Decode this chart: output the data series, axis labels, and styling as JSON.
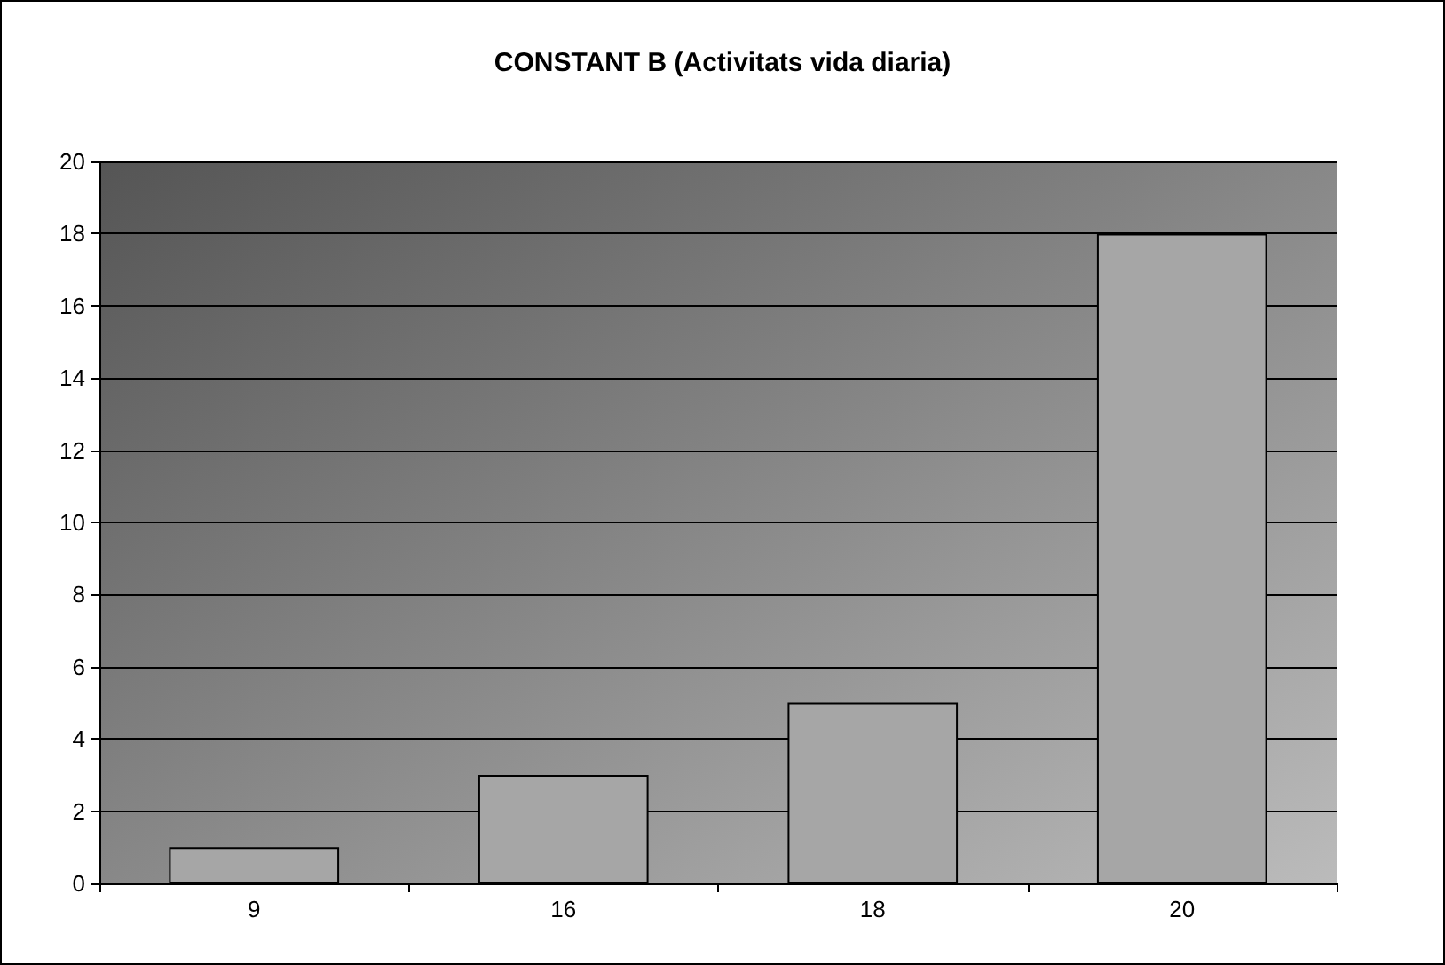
{
  "chart_data": {
    "type": "bar",
    "title": "CONSTANT B (Activitats vida diaria)",
    "categories": [
      "9",
      "16",
      "18",
      "20"
    ],
    "values": [
      1,
      3,
      5,
      18
    ],
    "color": "#a6a6a6",
    "ylim": [
      0,
      20
    ],
    "yticks": [
      0,
      2,
      4,
      6,
      8,
      10,
      12,
      14,
      16,
      18,
      20
    ],
    "grid": "y"
  }
}
